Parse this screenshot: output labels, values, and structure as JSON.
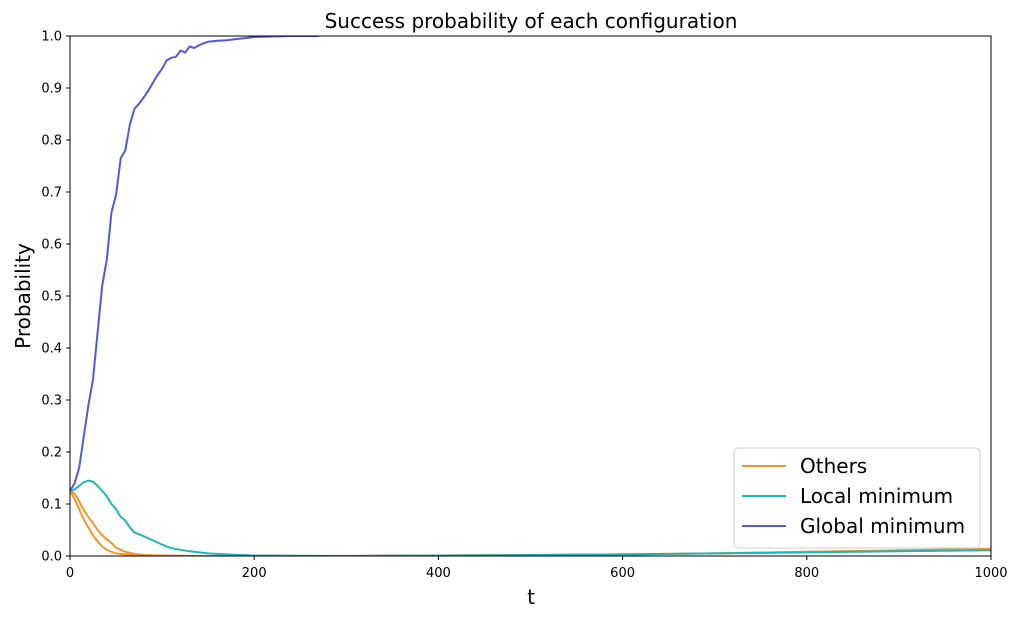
{
  "chart_data": {
    "type": "line",
    "title": "Success probability of each configuration",
    "xlabel": "t",
    "ylabel": "Probability",
    "xlim": [
      0,
      1000
    ],
    "ylim": [
      0,
      1.0
    ],
    "xticks": [
      0,
      200,
      400,
      600,
      800,
      1000
    ],
    "yticks": [
      0.0,
      0.1,
      0.2,
      0.3,
      0.4,
      0.5,
      0.6,
      0.7,
      0.8,
      0.9,
      1.0
    ],
    "grid": false,
    "legend_position": "lower-right",
    "series": [
      {
        "name": "Others",
        "color": "#f0962a",
        "style": "multiple-lines",
        "lines": [
          {
            "x": [
              0,
              5,
              10,
              15,
              20,
              25,
              30,
              35,
              40,
              45,
              50,
              60,
              70,
              80,
              100,
              150,
              200,
              300,
              400,
              500,
              600,
              700,
              800,
              900,
              1000
            ],
            "y": [
              0.125,
              0.12,
              0.105,
              0.088,
              0.075,
              0.063,
              0.05,
              0.04,
              0.032,
              0.025,
              0.016,
              0.008,
              0.004,
              0.002,
              0.001,
              0.0,
              0.0,
              0.0,
              0.001,
              0.002,
              0.003,
              0.005,
              0.008,
              0.011,
              0.014
            ]
          },
          {
            "x": [
              0,
              5,
              10,
              15,
              20,
              25,
              30,
              35,
              40,
              45,
              50,
              60,
              70,
              80,
              100,
              150,
              200,
              300,
              400,
              500,
              600,
              700,
              800,
              900,
              1000
            ],
            "y": [
              0.125,
              0.11,
              0.09,
              0.07,
              0.055,
              0.04,
              0.028,
              0.018,
              0.012,
              0.008,
              0.005,
              0.003,
              0.002,
              0.001,
              0.0,
              0.0,
              0.0,
              0.0,
              0.001,
              0.002,
              0.003,
              0.005,
              0.008,
              0.01,
              0.012
            ]
          }
        ]
      },
      {
        "name": "Local minimum",
        "color": "#22b5b8",
        "style": "single-line",
        "x": [
          0,
          5,
          10,
          15,
          20,
          25,
          30,
          35,
          40,
          45,
          50,
          55,
          60,
          65,
          70,
          80,
          90,
          100,
          110,
          120,
          130,
          140,
          150,
          170,
          200,
          300,
          400,
          500,
          600,
          700,
          800,
          900,
          1000
        ],
        "y": [
          0.125,
          0.128,
          0.135,
          0.142,
          0.145,
          0.143,
          0.135,
          0.125,
          0.115,
          0.1,
          0.09,
          0.075,
          0.068,
          0.055,
          0.045,
          0.038,
          0.03,
          0.022,
          0.015,
          0.012,
          0.009,
          0.007,
          0.005,
          0.003,
          0.001,
          0.0,
          0.001,
          0.002,
          0.003,
          0.005,
          0.007,
          0.009,
          0.011
        ]
      },
      {
        "name": "Global minimum",
        "color": "#4f5bdc",
        "style": "single-line",
        "x": [
          0,
          5,
          10,
          15,
          20,
          25,
          30,
          35,
          40,
          45,
          50,
          55,
          60,
          65,
          70,
          75,
          80,
          85,
          90,
          95,
          100,
          105,
          110,
          115,
          120,
          125,
          130,
          135,
          140,
          145,
          150,
          160,
          170,
          180,
          190,
          200,
          220,
          240,
          260,
          270
        ],
        "y": [
          0.125,
          0.14,
          0.17,
          0.23,
          0.29,
          0.34,
          0.43,
          0.52,
          0.57,
          0.66,
          0.695,
          0.765,
          0.78,
          0.83,
          0.86,
          0.87,
          0.882,
          0.895,
          0.91,
          0.925,
          0.937,
          0.953,
          0.958,
          0.96,
          0.972,
          0.968,
          0.98,
          0.977,
          0.982,
          0.986,
          0.989,
          0.991,
          0.992,
          0.994,
          0.996,
          0.998,
          0.999,
          1.0,
          1.0,
          1.0
        ]
      }
    ]
  }
}
